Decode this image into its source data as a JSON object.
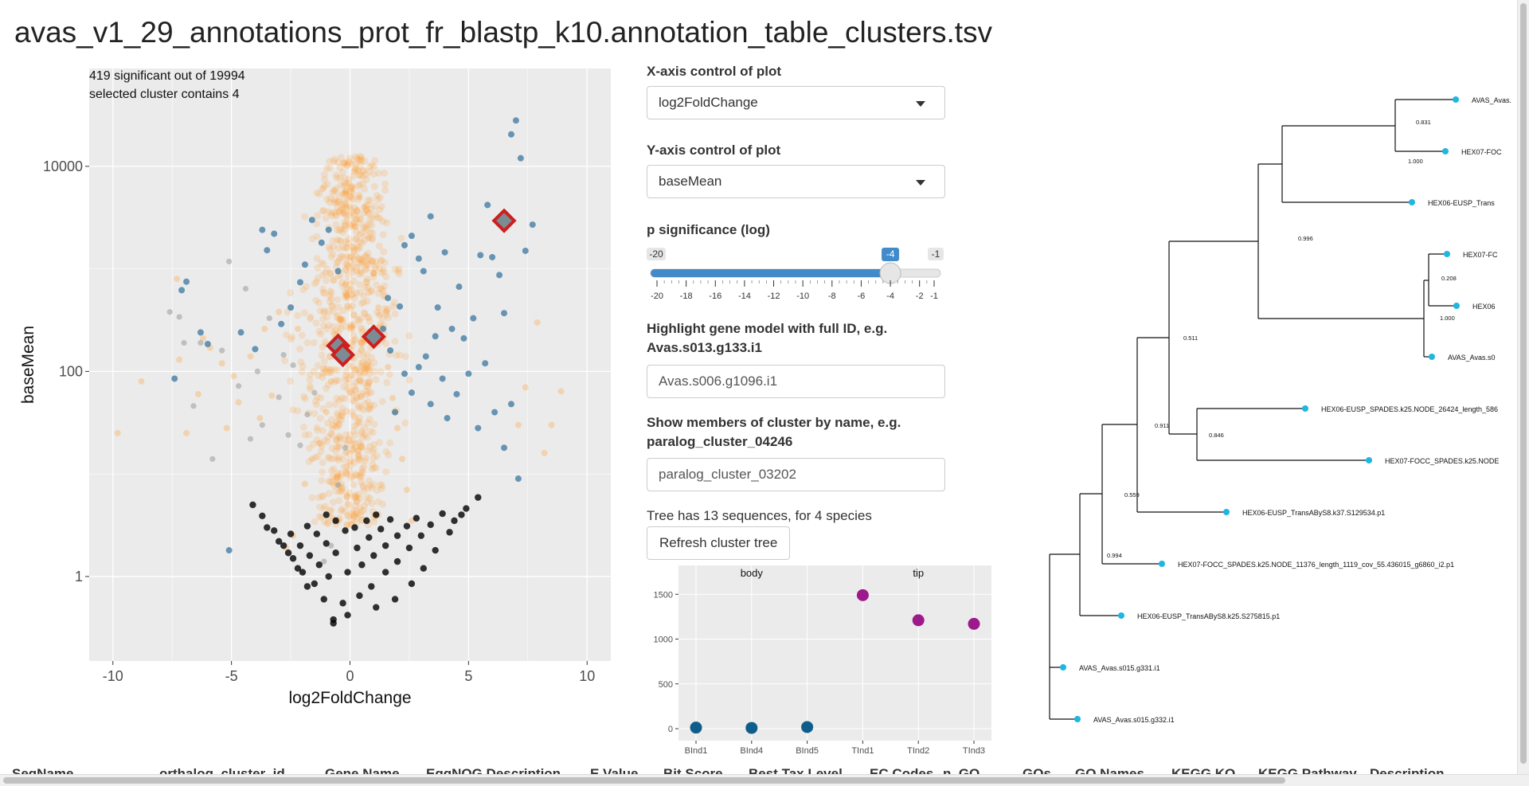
{
  "page": {
    "title": "avas_v1_29_annotations_prot_fr_blastp_k10.annotation_table_clusters.tsv"
  },
  "controls": {
    "x_axis_label": "X-axis control of plot",
    "x_axis_value": "log2FoldChange",
    "y_axis_label": "Y-axis control of plot",
    "y_axis_value": "baseMean",
    "p_label": "p significance (log)",
    "highlight_label": "Highlight gene model with full ID, e.g. Avas.s013.g133.i1",
    "highlight_value": "Avas.s006.g1096.i1",
    "cluster_label": "Show members of cluster by name, e.g. paralog_cluster_04246",
    "cluster_value": "paralog_cluster_03202",
    "tree_info": "Tree has 13 sequences, for 4 species",
    "refresh_button": "Refresh cluster tree"
  },
  "slider": {
    "min": -20,
    "max": -1,
    "value": -4,
    "min_label": "-20",
    "max_label": "-1",
    "value_label": "-4",
    "ticks": [
      -20,
      -18,
      -16,
      -14,
      -12,
      -10,
      -8,
      -6,
      -4,
      -2,
      -1
    ],
    "tick_labels": [
      "-20",
      "-18",
      "-16",
      "-14",
      "-12",
      "-10",
      "-8",
      "-6",
      "-4",
      "-2",
      "-1"
    ],
    "accent": "#428bca"
  },
  "colors": {
    "panel_bg": "#ebebeb",
    "grid": "#ffffff",
    "nonsig": "#ff9d2e",
    "sig": "#2f6f9a",
    "zero": "#000000",
    "highlight": "#cc1f1f",
    "body": "#0f5d8a",
    "tip": "#9c1a8c",
    "tree_tip": "#1fb6e0"
  },
  "table": {
    "columns": [
      "SeqName",
      "orthalog_cluster_id",
      "Gene Name",
      "EggNOG Description",
      "E Value",
      "Bit Score",
      "Best Tax Level",
      "EC Codes",
      "n_GO",
      "GOs",
      "GO Names",
      "KEGG KO",
      "KEGG Pathway",
      "Description"
    ]
  },
  "chart_data": [
    {
      "type": "scatter",
      "title": "",
      "annotations": [
        "419 significant out of 19994",
        "selected cluster contains 4"
      ],
      "xlabel": "log2FoldChange",
      "ylabel": "baseMean",
      "xlim": [
        -11,
        11
      ],
      "y_scale": "log10",
      "ylim": [
        0.15,
        90000
      ],
      "x_ticks": [
        -10,
        -5,
        0,
        5,
        10
      ],
      "x_tick_labels": [
        "-10",
        "-5",
        "0",
        "5",
        "10"
      ],
      "y_ticks": [
        1,
        100,
        10000
      ],
      "y_tick_labels": [
        "1",
        "100",
        "10000"
      ],
      "grid": true,
      "series": [
        {
          "values": [
            [
              -9.8,
              25
            ],
            [
              -8.8,
              80
            ],
            [
              -7.3,
              800
            ],
            [
              -7.2,
              130
            ],
            [
              -6.9,
              25
            ],
            [
              -6.4,
              60
            ],
            [
              -6.2,
              210
            ],
            [
              -5.9,
              170
            ],
            [
              -5.4,
              120
            ],
            [
              -5.2,
              28
            ],
            [
              -4.9,
              90
            ],
            [
              -4.7,
              50
            ],
            [
              -4.2,
              140
            ],
            [
              -3.8,
              35
            ],
            [
              -3.6,
              260
            ],
            [
              -3.3,
              58
            ],
            [
              -3.0,
              380
            ],
            [
              -2.7,
              1.9
            ],
            [
              -2.4,
              2.5
            ],
            [
              -2.2,
              260
            ],
            [
              7.1,
              30
            ],
            [
              7.4,
              70
            ],
            [
              7.9,
              300
            ],
            [
              8.2,
              16
            ],
            [
              8.5,
              30
            ],
            [
              8.9,
              64
            ],
            [
              -1.9,
              8
            ],
            [
              -1.6,
              14
            ],
            [
              -1.3,
              20
            ],
            [
              -1.0,
              40
            ],
            [
              -0.8,
              80
            ],
            [
              -0.6,
              160
            ],
            [
              -0.4,
              320
            ],
            [
              -0.2,
              700
            ],
            [
              0,
              1300
            ],
            [
              0.2,
              2600
            ],
            [
              0.4,
              5000
            ],
            [
              0.6,
              4000
            ],
            [
              0.8,
              2000
            ],
            [
              1.0,
              900
            ],
            [
              1.2,
              420
            ],
            [
              1.4,
              210
            ],
            [
              1.6,
              110
            ],
            [
              1.8,
              55
            ],
            [
              2.0,
              28
            ],
            [
              2.2,
              14
            ],
            [
              2.4,
              7
            ],
            [
              2.6,
              3.5
            ]
          ]
        },
        {
          "values": [
            [
              -7.4,
              85
            ],
            [
              -7.1,
              620
            ],
            [
              -6.9,
              750
            ],
            [
              -6.3,
              240
            ],
            [
              -6.0,
              185
            ],
            [
              -5.1,
              1.8
            ],
            [
              -4.6,
              240
            ],
            [
              -4.0,
              165
            ],
            [
              -3.7,
              2400
            ],
            [
              -3.5,
              1520
            ],
            [
              -3.2,
              2200
            ],
            [
              -2.9,
              290
            ],
            [
              -2.5,
              420
            ],
            [
              -2.1,
              740
            ],
            [
              -1.9,
              1100
            ],
            [
              -1.6,
              3000
            ],
            [
              -1.2,
              1800
            ],
            [
              -0.9,
              2400
            ],
            [
              -0.5,
              950
            ],
            [
              2.1,
              430
            ],
            [
              2.3,
              1700
            ],
            [
              2.6,
              2100
            ],
            [
              2.9,
              1260
            ],
            [
              3.1,
              950
            ],
            [
              3.4,
              3250
            ],
            [
              3.7,
              420
            ],
            [
              4.0,
              1450
            ],
            [
              4.3,
              260
            ],
            [
              4.6,
              670
            ],
            [
              4.8,
              210
            ],
            [
              5.2,
              330
            ],
            [
              5.5,
              1360
            ],
            [
              5.8,
              4200
            ],
            [
              6.0,
              1300
            ],
            [
              6.3,
              870
            ],
            [
              6.5,
              370
            ],
            [
              6.8,
              20500
            ],
            [
              7.0,
              28000
            ],
            [
              7.2,
              12000
            ],
            [
              7.4,
              1500
            ],
            [
              7.7,
              2700
            ],
            [
              1.7,
              160
            ],
            [
              1.9,
              40
            ],
            [
              2.3,
              95
            ],
            [
              2.6,
              62
            ],
            [
              2.9,
              110
            ],
            [
              3.2,
              140
            ],
            [
              3.4,
              48
            ],
            [
              3.6,
              220
            ],
            [
              3.9,
              85
            ],
            [
              4.1,
              35
            ],
            [
              4.5,
              60
            ],
            [
              5.0,
              95
            ],
            [
              5.4,
              28
            ],
            [
              5.7,
              120
            ],
            [
              6.1,
              40
            ],
            [
              6.5,
              18
            ],
            [
              6.8,
              48
            ],
            [
              7.1,
              9
            ],
            [
              1.4,
              260
            ],
            [
              1.6,
              520
            ]
          ]
        },
        {
          "values": [
            [
              -7.6,
              380
            ],
            [
              -7.2,
              340
            ],
            [
              -7.0,
              190
            ],
            [
              -6.6,
              46
            ],
            [
              -6.3,
              190
            ],
            [
              -5.8,
              14
            ],
            [
              -5.4,
              160
            ],
            [
              -5.1,
              1180
            ],
            [
              -4.7,
              72
            ],
            [
              -4.4,
              640
            ],
            [
              -4.2,
              22
            ],
            [
              -3.9,
              100
            ],
            [
              -3.7,
              30
            ],
            [
              -3.4,
              330
            ],
            [
              -3.0,
              56
            ],
            [
              -2.8,
              145
            ],
            [
              -2.6,
              24
            ],
            [
              -2.4,
              115
            ],
            [
              -2.1,
              19
            ],
            [
              -1.8,
              38
            ],
            [
              -1.5,
              62
            ],
            [
              -1.1,
              1.4
            ],
            [
              -0.8,
              2.0
            ],
            [
              -0.5,
              7.8
            ],
            [
              -0.2,
              18
            ]
          ]
        },
        {
          "values": [
            [
              -0.7,
              0.35
            ],
            [
              -0.7,
              0.38
            ],
            [
              -0.1,
              0.42
            ],
            [
              1.1,
              0.5
            ],
            [
              1.9,
              0.6
            ],
            [
              2.6,
              0.85
            ],
            [
              3.1,
              1.2
            ],
            [
              3.6,
              1.8
            ],
            [
              4.2,
              2.7
            ],
            [
              4.7,
              4.0
            ],
            [
              -1.1,
              0.6
            ],
            [
              -1.5,
              0.85
            ],
            [
              -2.0,
              1.1
            ],
            [
              -2.4,
              1.5
            ],
            [
              -2.8,
              2.0
            ],
            [
              -3.2,
              2.8
            ],
            [
              -3.7,
              3.9
            ],
            [
              -4.1,
              5.0
            ],
            [
              -1.8,
              0.8
            ],
            [
              -2.2,
              1.2
            ],
            [
              -2.6,
              1.7
            ],
            [
              -3.0,
              2.2
            ],
            [
              -3.5,
              3.0
            ],
            [
              -0.3,
              0.55
            ],
            [
              0.4,
              0.65
            ],
            [
              0.9,
              0.8
            ],
            [
              1.5,
              1.1
            ],
            [
              2.0,
              1.4
            ],
            [
              2.5,
              1.9
            ],
            [
              3.0,
              2.5
            ],
            [
              3.4,
              3.2
            ],
            [
              3.9,
              4.1
            ],
            [
              -0.9,
              1.0
            ],
            [
              -1.3,
              1.3
            ],
            [
              -1.7,
              1.6
            ],
            [
              -2.1,
              2.0
            ],
            [
              -2.5,
              2.6
            ],
            [
              -0.1,
              1.1
            ],
            [
              0.5,
              1.3
            ],
            [
              1.0,
              1.6
            ],
            [
              1.5,
              2.0
            ],
            [
              2.0,
              2.5
            ],
            [
              2.4,
              3.1
            ],
            [
              2.8,
              3.7
            ],
            [
              -0.6,
              1.7
            ],
            [
              -1.0,
              2.1
            ],
            [
              -1.4,
              2.6
            ],
            [
              -1.8,
              3.1
            ],
            [
              0.3,
              1.9
            ],
            [
              0.8,
              2.4
            ],
            [
              1.3,
              2.9
            ],
            [
              1.7,
              3.6
            ],
            [
              -0.2,
              2.8
            ],
            [
              0.2,
              3.0
            ],
            [
              0.7,
              3.5
            ],
            [
              1.1,
              4.0
            ],
            [
              -0.6,
              3.5
            ],
            [
              -1.0,
              4.0
            ],
            [
              4.4,
              3.5
            ],
            [
              4.9,
              4.6
            ],
            [
              5.4,
              5.9
            ]
          ]
        },
        {
          "values": [
            [
              6.5,
              2950
            ],
            [
              -0.5,
              178
            ],
            [
              -0.3,
              145
            ],
            [
              1.0,
              218
            ]
          ]
        }
      ]
    },
    {
      "type": "scatter",
      "title": "",
      "categories": [
        "BInd1",
        "BInd4",
        "BInd5",
        "TInd1",
        "TInd2",
        "TInd3"
      ],
      "facets": [
        "body",
        "tip"
      ],
      "ylim": [
        0,
        1600
      ],
      "y_ticks": [
        0,
        500,
        1000,
        1500
      ],
      "y_tick_labels": [
        "0",
        "500",
        "1000",
        "1500"
      ],
      "grid": true,
      "series": [
        {
          "facet": "body",
          "values": [
            12,
            8,
            18,
            0,
            0,
            0
          ]
        },
        {
          "facet": "tip",
          "values": [
            0,
            0,
            0,
            1490,
            1210,
            1170
          ]
        }
      ]
    }
  ],
  "tree": {
    "tips": [
      "AVAS_Avas.",
      "HEX07-FOC",
      "HEX06-EUSP_Trans",
      "HEX07-FC",
      "HEX06",
      "AVAS_Avas.s0",
      "HEX06-EUSP_SPADES.k25.NODE_26424_length_586",
      "HEX07-FOCC_SPADES.k25.NODE",
      "HEX06-EUSP_TransAByS8.k37.S129534.p1",
      "HEX07-FOCC_SPADES.k25.NODE_11376_length_1119_cov_55.436015_g6860_i2.p1",
      "HEX06-EUSP_TransAByS8.k25.S275815.p1",
      "AVAS_Avas.s015.g331.i1",
      "AVAS_Avas.s015.g332.i1"
    ],
    "supports": [
      "0.831",
      "1.000",
      "0.996",
      "0.208",
      "1.000",
      "0.511",
      "0.911",
      "0.846",
      "0.559",
      "0.994"
    ]
  }
}
